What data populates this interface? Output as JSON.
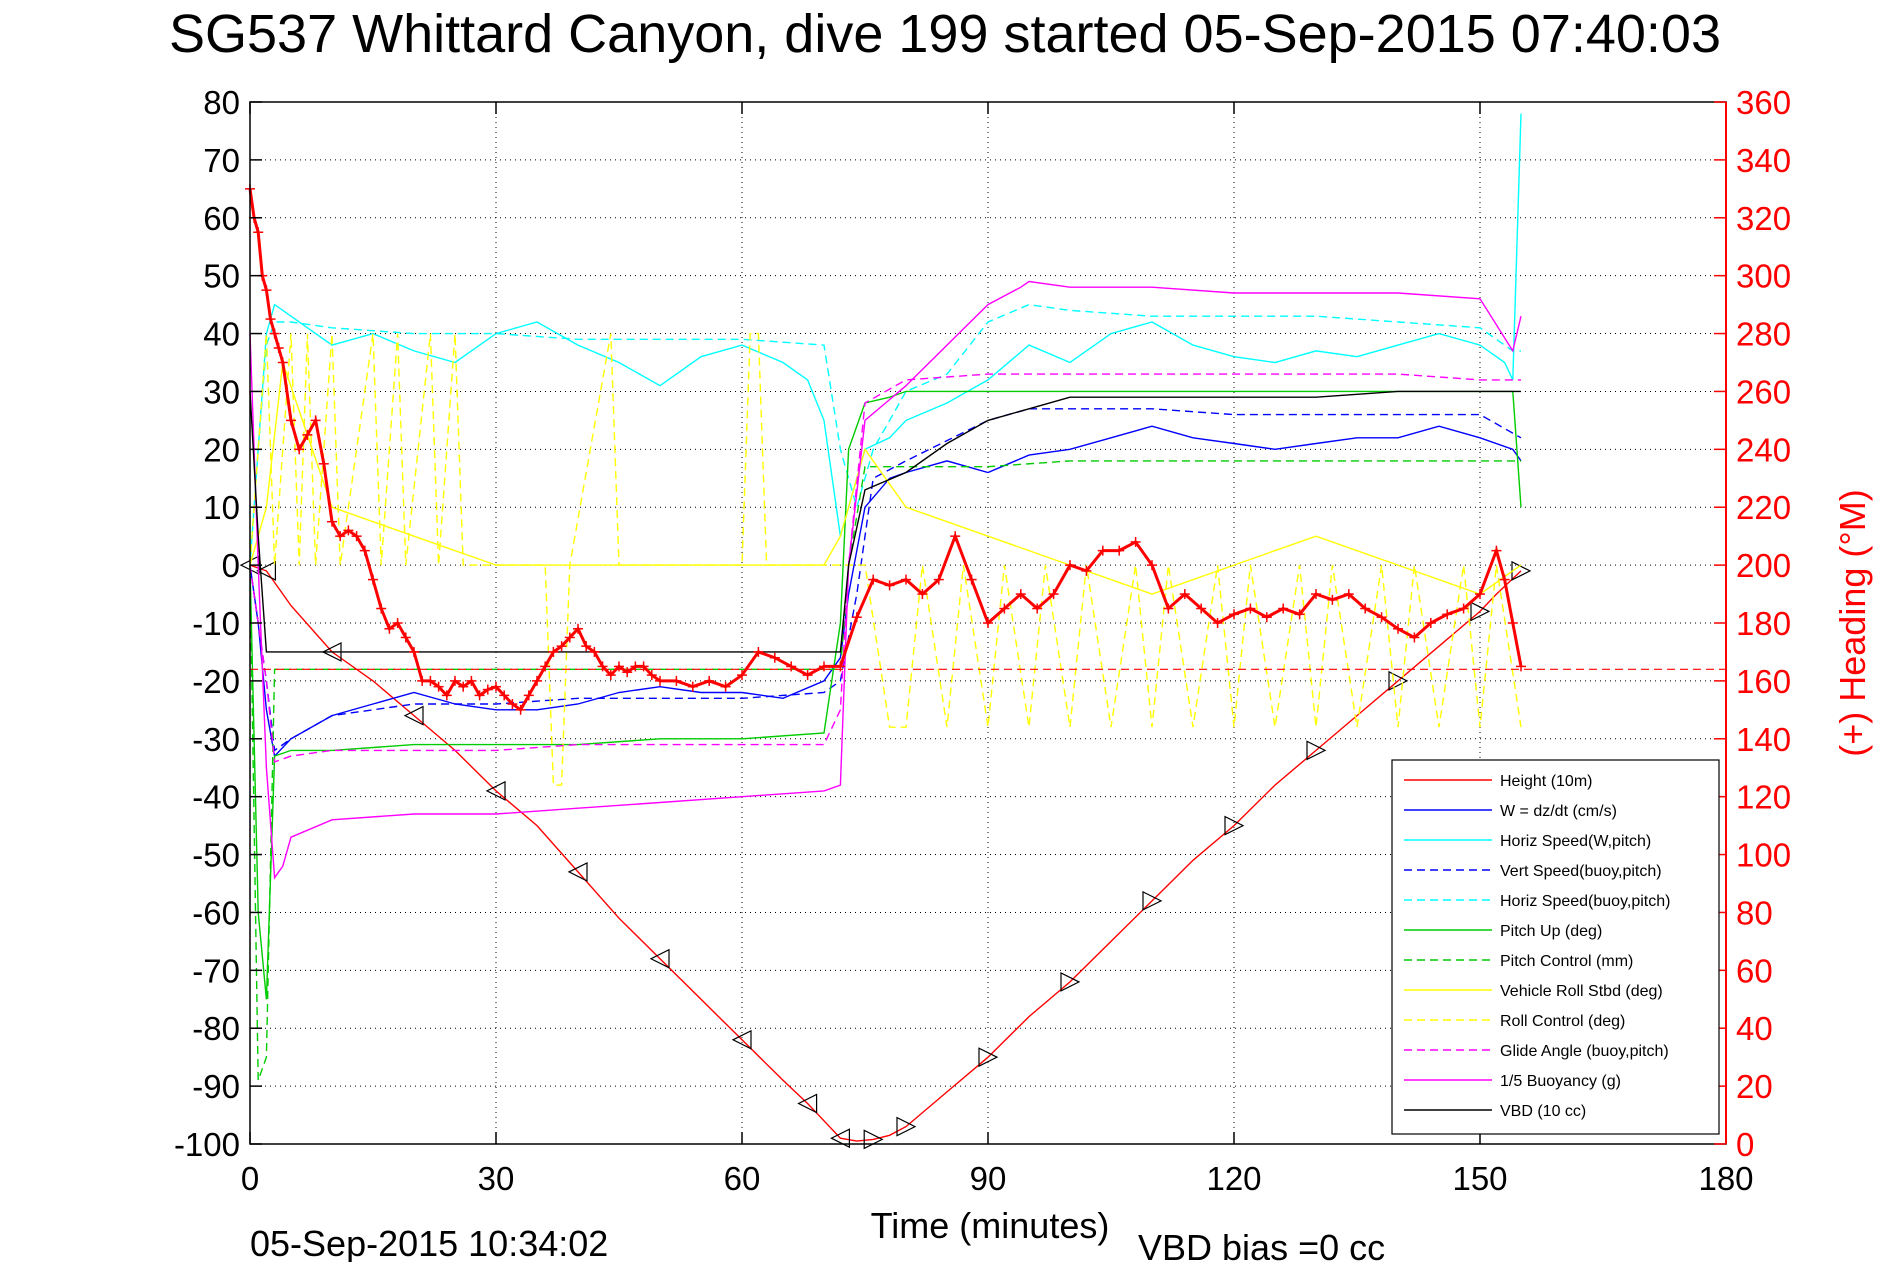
{
  "chart_data": {
    "type": "line",
    "title": "SG537 Whittard Canyon, dive 199 started 05-Sep-2015 07:40:03",
    "xlabel": "Time (minutes)",
    "ylabel": "",
    "y2label": "(+) Heading (°M)",
    "footer_left": "05-Sep-2015 10:34:02",
    "footer_right": "VBD bias =0 cc",
    "xlim": [
      0,
      180
    ],
    "ylim": [
      -100,
      80
    ],
    "y2lim": [
      0,
      360
    ],
    "xticks": [
      "0",
      "30",
      "60",
      "90",
      "120",
      "150",
      "180"
    ],
    "yticks": [
      "80",
      "70",
      "60",
      "50",
      "40",
      "30",
      "20",
      "10",
      "0",
      "-10",
      "-20",
      "-30",
      "-40",
      "-50",
      "-60",
      "-70",
      "-80",
      "-90",
      "-100"
    ],
    "y2ticks": [
      "360",
      "340",
      "320",
      "300",
      "280",
      "260",
      "240",
      "220",
      "200",
      "180",
      "160",
      "140",
      "120",
      "100",
      "80",
      "60",
      "40",
      "20",
      "0"
    ],
    "grid": true,
    "legend_position": "bottom-right",
    "series": [
      {
        "name": "Height (10m)",
        "color": "#ff0000",
        "style": "solid",
        "marker": "triangle",
        "x": [
          0,
          1,
          2,
          5,
          10,
          15,
          20,
          25,
          30,
          35,
          40,
          45,
          50,
          55,
          60,
          65,
          68,
          70,
          72,
          74,
          76,
          78,
          80,
          85,
          90,
          95,
          100,
          105,
          110,
          115,
          120,
          125,
          130,
          135,
          140,
          145,
          150,
          152,
          155
        ],
        "y": [
          0,
          -0.5,
          -1,
          -7,
          -15,
          -20,
          -26,
          -32,
          -39,
          -45,
          -53,
          -61,
          -68,
          -75,
          -82,
          -89,
          -93,
          -96,
          -99,
          -99.5,
          -99.2,
          -98.5,
          -97,
          -91,
          -85,
          -78,
          -72,
          -65,
          -58,
          -51,
          -45,
          -38,
          -32,
          -26,
          -20,
          -14,
          -8,
          -5,
          -1
        ]
      },
      {
        "name": "W = dz/dt (cm/s)",
        "color": "#0000ff",
        "style": "solid",
        "marker": "",
        "x": [
          0,
          1,
          2,
          3,
          5,
          10,
          15,
          20,
          25,
          30,
          35,
          40,
          45,
          50,
          55,
          60,
          65,
          70,
          72,
          73,
          75,
          78,
          80,
          85,
          90,
          95,
          100,
          105,
          110,
          115,
          120,
          125,
          130,
          135,
          140,
          145,
          150,
          154,
          155
        ],
        "y": [
          0,
          -10,
          -25,
          -33,
          -30,
          -26,
          -24,
          -22,
          -24,
          -25,
          -25,
          -24,
          -22,
          -21,
          -22,
          -22,
          -23,
          -20,
          -16,
          -5,
          10,
          15,
          16,
          18,
          16,
          19,
          20,
          22,
          24,
          22,
          21,
          20,
          21,
          22,
          22,
          24,
          22,
          20,
          18
        ]
      },
      {
        "name": "Horiz Speed(W,pitch)",
        "color": "#00ffff",
        "style": "solid",
        "marker": "",
        "x": [
          0,
          1,
          2,
          3,
          5,
          10,
          15,
          20,
          25,
          30,
          35,
          40,
          45,
          50,
          55,
          60,
          65,
          68,
          70,
          71,
          72,
          73,
          75,
          78,
          80,
          85,
          90,
          95,
          100,
          105,
          110,
          115,
          120,
          125,
          130,
          135,
          140,
          145,
          150,
          153,
          154,
          155
        ],
        "y": [
          0,
          20,
          40,
          45,
          43,
          38,
          40,
          37,
          35,
          40,
          42,
          38,
          35,
          31,
          36,
          38,
          35,
          32,
          25,
          15,
          5,
          10,
          20,
          22,
          25,
          28,
          32,
          38,
          35,
          40,
          42,
          38,
          36,
          35,
          37,
          36,
          38,
          40,
          38,
          35,
          32,
          78
        ]
      },
      {
        "name": "Vert Speed(buoy,pitch)",
        "color": "#0000ff",
        "style": "dashed",
        "marker": "",
        "x": [
          0,
          2,
          3,
          5,
          10,
          20,
          30,
          40,
          50,
          60,
          70,
          72,
          74,
          76,
          80,
          90,
          95,
          100,
          110,
          120,
          130,
          140,
          150,
          155
        ],
        "y": [
          0,
          -20,
          -32,
          -30,
          -26,
          -24,
          -24,
          -23,
          -23,
          -23,
          -22,
          -20,
          -5,
          15,
          18,
          25,
          27,
          27,
          27,
          26,
          26,
          26,
          26,
          22
        ]
      },
      {
        "name": "Horiz Speed(buoy,pitch)",
        "color": "#00ffff",
        "style": "dashed",
        "marker": "",
        "x": [
          0,
          1,
          2,
          3,
          5,
          10,
          20,
          30,
          40,
          50,
          60,
          70,
          72,
          74,
          76,
          78,
          80,
          85,
          90,
          95,
          100,
          110,
          120,
          130,
          140,
          150,
          154,
          155
        ],
        "y": [
          0,
          20,
          38,
          42,
          42,
          41,
          40,
          40,
          39,
          39,
          39,
          38,
          20,
          10,
          20,
          25,
          30,
          33,
          42,
          45,
          44,
          43,
          43,
          43,
          42,
          41,
          37,
          37
        ]
      },
      {
        "name": "Pitch Up (deg)",
        "color": "#00cc00",
        "style": "solid",
        "marker": "",
        "x": [
          0,
          1,
          2,
          3,
          5,
          10,
          20,
          30,
          40,
          50,
          60,
          70,
          72,
          73,
          75,
          78,
          80,
          90,
          100,
          110,
          120,
          130,
          140,
          150,
          154,
          155
        ],
        "y": [
          0,
          -60,
          -75,
          -33,
          -32,
          -32,
          -31,
          -31,
          -31,
          -30,
          -30,
          -29,
          -10,
          20,
          28,
          29,
          30,
          30,
          30,
          30,
          30,
          30,
          30,
          30,
          30,
          10
        ]
      },
      {
        "name": "Pitch Control (mm)",
        "color": "#00cc00",
        "style": "dashed",
        "marker": "",
        "x": [
          0,
          1,
          2,
          3,
          10,
          20,
          30,
          40,
          50,
          60,
          70,
          72,
          73,
          75,
          80,
          90,
          100,
          110,
          120,
          130,
          140,
          150,
          155
        ],
        "y": [
          0,
          -89,
          -85,
          -18,
          -18,
          -18,
          -18,
          -18,
          -18,
          -18,
          -18,
          -18,
          0,
          17,
          17,
          17,
          18,
          18,
          18,
          18,
          18,
          18,
          18
        ]
      },
      {
        "name": "Vehicle Roll Stbd (deg)",
        "color": "#ffff00",
        "style": "solid",
        "marker": "",
        "x": [
          0,
          2,
          4,
          10,
          20,
          30,
          40,
          50,
          60,
          70,
          72,
          75,
          80,
          90,
          100,
          110,
          120,
          130,
          140,
          150,
          155
        ],
        "y": [
          0,
          10,
          35,
          10,
          5,
          0,
          0,
          0,
          0,
          0,
          5,
          20,
          10,
          5,
          0,
          -5,
          0,
          5,
          0,
          -5,
          0
        ]
      },
      {
        "name": "Roll Control (deg)",
        "color": "#ffff00",
        "style": "dashed",
        "marker": "",
        "x": [
          0,
          2,
          3,
          5,
          6,
          7,
          8,
          10,
          11,
          15,
          16,
          18,
          19,
          22,
          23,
          25,
          26,
          36,
          37,
          38,
          39,
          44,
          45,
          60,
          61,
          62,
          63,
          70,
          72,
          75,
          78,
          80,
          82,
          85,
          87,
          90,
          92,
          95,
          97,
          100,
          102,
          105,
          108,
          110,
          112,
          115,
          118,
          120,
          122,
          125,
          128,
          130,
          132,
          135,
          138,
          140,
          142,
          145,
          148,
          150,
          152,
          155
        ],
        "y": [
          0,
          40,
          0,
          40,
          0,
          40,
          0,
          40,
          0,
          40,
          0,
          40,
          0,
          40,
          0,
          40,
          0,
          0,
          -38,
          -38,
          0,
          40,
          0,
          0,
          40,
          40,
          0,
          0,
          0,
          0,
          -28,
          -28,
          0,
          -28,
          0,
          -28,
          0,
          -28,
          0,
          -28,
          0,
          -28,
          0,
          -28,
          0,
          -28,
          0,
          -28,
          0,
          -28,
          0,
          -28,
          0,
          -28,
          0,
          -28,
          0,
          -28,
          0,
          -28,
          0,
          -28
        ]
      },
      {
        "name": "Glide Angle (buoy,pitch)",
        "color": "#ff00ff",
        "style": "dashed",
        "marker": "",
        "x": [
          0,
          2,
          3,
          5,
          10,
          20,
          30,
          40,
          50,
          60,
          70,
          72,
          73,
          75,
          80,
          90,
          100,
          110,
          120,
          130,
          140,
          150,
          155
        ],
        "y": [
          0,
          -20,
          -34,
          -33,
          -32,
          -32,
          -32,
          -31,
          -31,
          -31,
          -31,
          -25,
          0,
          28,
          32,
          33,
          33,
          33,
          33,
          33,
          33,
          32,
          32
        ]
      },
      {
        "name": "1/5 Buoyancy (g)",
        "color": "#ff00ff",
        "style": "solid",
        "marker": "",
        "x": [
          0,
          1,
          2,
          3,
          4,
          5,
          10,
          20,
          30,
          40,
          50,
          60,
          70,
          72,
          73,
          75,
          80,
          85,
          90,
          94,
          95,
          100,
          110,
          120,
          130,
          140,
          150,
          154,
          155
        ],
        "y": [
          40,
          0,
          -35,
          -54,
          -52,
          -47,
          -44,
          -43,
          -43,
          -42,
          -41,
          -40,
          -39,
          -38,
          0,
          25,
          31,
          38,
          45,
          48,
          49,
          48,
          48,
          47,
          47,
          47,
          46,
          37,
          43
        ]
      },
      {
        "name": "VBD (10 cc)",
        "color": "#000000",
        "style": "solid",
        "marker": "",
        "x": [
          0,
          1,
          2,
          10,
          20,
          30,
          40,
          50,
          60,
          70,
          72,
          73,
          75,
          80,
          85,
          90,
          95,
          100,
          110,
          120,
          130,
          140,
          150,
          155
        ],
        "y": [
          30,
          5,
          -15,
          -15,
          -15,
          -15,
          -15,
          -15,
          -15,
          -15,
          -15,
          0,
          13,
          16,
          21,
          25,
          27,
          29,
          29,
          29,
          29,
          30,
          30,
          30
        ]
      }
    ],
    "heading_series": {
      "name": "(+) Heading",
      "color": "#ff0000",
      "marker": "plus",
      "axis": "right",
      "x": [
        0,
        0.5,
        1,
        1.5,
        2,
        2.5,
        3,
        3.5,
        4,
        5,
        6,
        7,
        8,
        9,
        10,
        11,
        12,
        13,
        14,
        15,
        16,
        17,
        18,
        19,
        20,
        21,
        22,
        23,
        24,
        25,
        26,
        27,
        28,
        29,
        30,
        31,
        32,
        33,
        34,
        35,
        36,
        37,
        38,
        39,
        40,
        41,
        42,
        43,
        44,
        45,
        46,
        47,
        48,
        49,
        50,
        52,
        54,
        56,
        58,
        60,
        62,
        64,
        66,
        68,
        70,
        72,
        74,
        76,
        78,
        80,
        82,
        84,
        86,
        88,
        90,
        92,
        94,
        96,
        98,
        100,
        102,
        104,
        106,
        108,
        110,
        112,
        114,
        116,
        118,
        120,
        122,
        124,
        126,
        128,
        130,
        132,
        134,
        136,
        138,
        140,
        142,
        144,
        146,
        148,
        150,
        152,
        153,
        154,
        155
      ],
      "y": [
        330,
        320,
        315,
        300,
        295,
        285,
        280,
        275,
        270,
        250,
        240,
        245,
        250,
        235,
        215,
        210,
        212,
        210,
        205,
        195,
        185,
        178,
        180,
        175,
        170,
        160,
        160,
        158,
        155,
        160,
        158,
        160,
        155,
        157,
        158,
        155,
        152,
        150,
        155,
        160,
        165,
        170,
        172,
        175,
        178,
        172,
        170,
        165,
        162,
        165,
        163,
        165,
        165,
        162,
        160,
        160,
        158,
        160,
        158,
        162,
        170,
        168,
        165,
        162,
        165,
        165,
        182,
        195,
        193,
        195,
        190,
        195,
        210,
        195,
        180,
        185,
        190,
        185,
        190,
        200,
        198,
        205,
        205,
        208,
        200,
        185,
        190,
        185,
        180,
        183,
        185,
        182,
        185,
        183,
        190,
        188,
        190,
        185,
        182,
        178,
        175,
        180,
        183,
        185,
        190,
        205,
        195,
        180,
        165
      ]
    }
  }
}
